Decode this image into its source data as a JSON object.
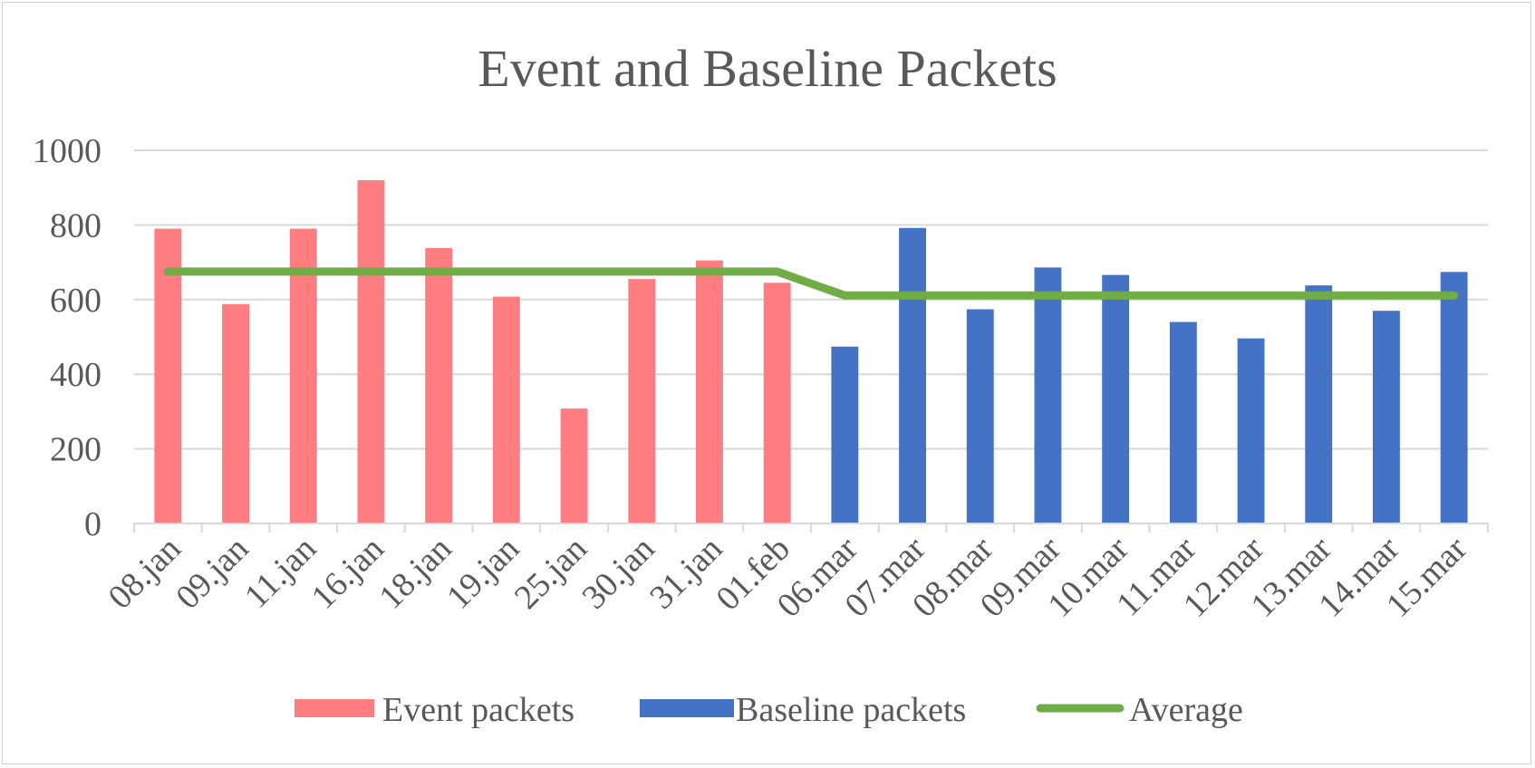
{
  "chart_data": {
    "type": "bar",
    "title": "Event and Baseline Packets",
    "categories": [
      "08.jan",
      "09.jan",
      "11.jan",
      "16.jan",
      "18.jan",
      "19.jan",
      "25.jan",
      "30.jan",
      "31.jan",
      "01.feb",
      "06.mar",
      "07.mar",
      "08.mar",
      "09.mar",
      "10.mar",
      "11.mar",
      "12.mar",
      "13.mar",
      "14.mar",
      "15.mar"
    ],
    "series": [
      {
        "name": "Event packets",
        "kind": "bar",
        "color": "#ff7c80",
        "values": [
          790,
          588,
          790,
          920,
          738,
          608,
          308,
          655,
          705,
          645,
          null,
          null,
          null,
          null,
          null,
          null,
          null,
          null,
          null,
          null
        ]
      },
      {
        "name": "Baseline packets",
        "kind": "bar",
        "color": "#4472c4",
        "values": [
          null,
          null,
          null,
          null,
          null,
          null,
          null,
          null,
          null,
          null,
          474,
          792,
          574,
          686,
          666,
          540,
          496,
          638,
          570,
          674
        ]
      },
      {
        "name": "Average",
        "kind": "line",
        "color": "#70ad47",
        "values": [
          675,
          675,
          675,
          675,
          675,
          675,
          675,
          675,
          675,
          675,
          611,
          611,
          611,
          611,
          611,
          611,
          611,
          611,
          611,
          611
        ]
      }
    ],
    "yticks": [
      "0",
      "200",
      "400",
      "600",
      "800",
      "1000"
    ],
    "ylim": [
      0,
      1000
    ],
    "grid": true,
    "legend_position": "bottom"
  }
}
